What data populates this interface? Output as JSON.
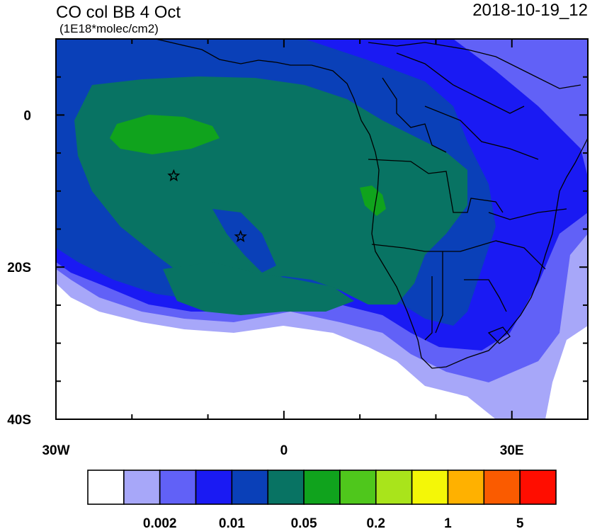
{
  "map": {
    "title": "CO col BB 4 Oct",
    "units": "(1E18*molec/cm2)",
    "timestamp": "2018-10-19_12",
    "x_ticks": [
      {
        "value": -30,
        "label": "30W"
      },
      {
        "value": 0,
        "label": "0"
      },
      {
        "value": 30,
        "label": "30E"
      }
    ],
    "y_ticks": [
      {
        "value": 0,
        "label": "0"
      },
      {
        "value": -20,
        "label": "20S"
      },
      {
        "value": -40,
        "label": "40S"
      }
    ],
    "extent": {
      "lon_min": -30,
      "lon_max": 40,
      "lat_min": -40,
      "lat_max": 10
    },
    "source_markers": [
      {
        "name": "source-star-1",
        "lon": -14.5,
        "lat": -8
      },
      {
        "name": "source-star-2",
        "lon": -5.7,
        "lat": -16
      }
    ]
  },
  "colorbar": {
    "colors": [
      "#ffffff",
      "#a7a7f9",
      "#6161f7",
      "#1a1af3",
      "#0a40b8",
      "#087363",
      "#10a31d",
      "#4fc71c",
      "#a9e41b",
      "#f4f707",
      "#ffb100",
      "#fa5b00",
      "#ff0d00"
    ],
    "tick_labels": [
      {
        "after_box": 2,
        "label": "0.002"
      },
      {
        "after_box": 4,
        "label": "0.01"
      },
      {
        "after_box": 6,
        "label": "0.05"
      },
      {
        "after_box": 8,
        "label": "0.2"
      },
      {
        "after_box": 10,
        "label": "1"
      },
      {
        "after_box": 12,
        "label": "5"
      }
    ]
  }
}
